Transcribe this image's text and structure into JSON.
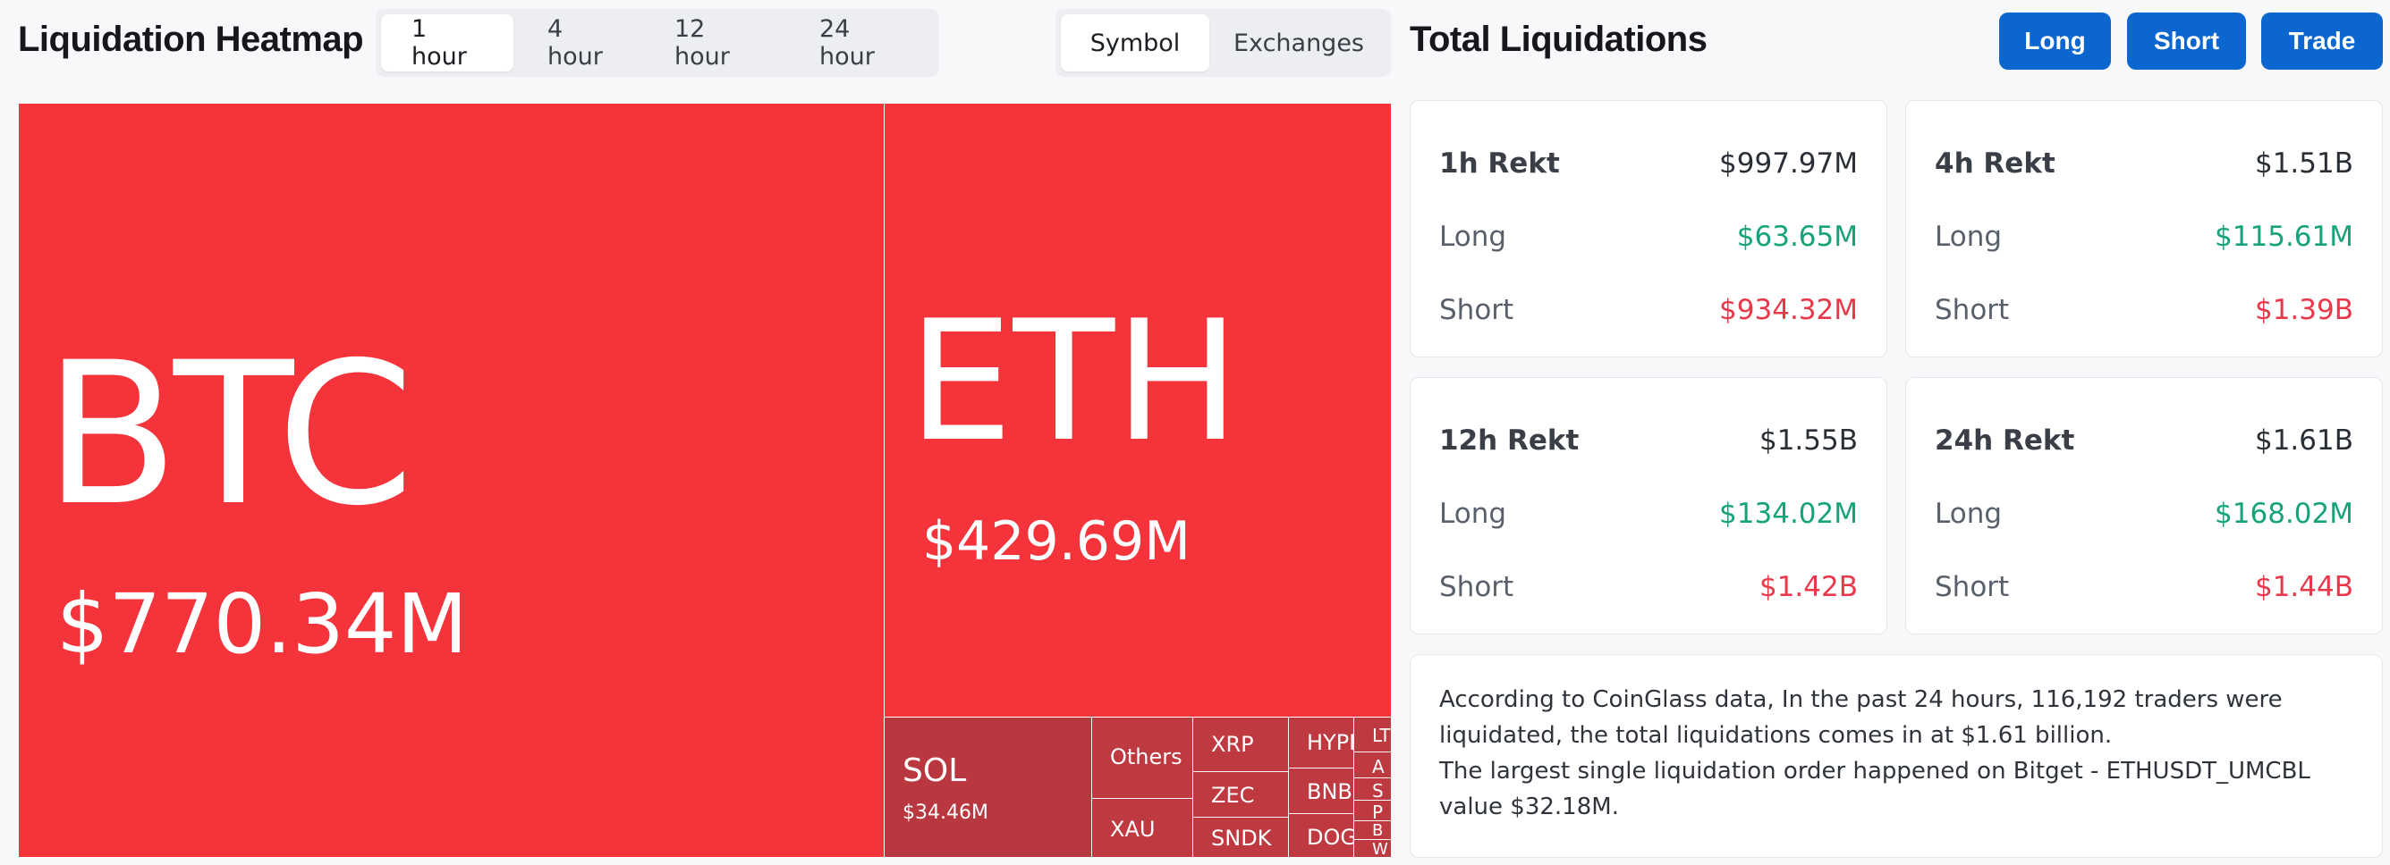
{
  "heatmap": {
    "title": "Liquidation Heatmap",
    "time_tabs": [
      "1 hour",
      "4 hour",
      "12 hour",
      "24 hour"
    ],
    "view_tabs": [
      "Symbol",
      "Exchanges"
    ],
    "tiles": {
      "btc": {
        "symbol": "BTC",
        "value": "$770.34M"
      },
      "eth": {
        "symbol": "ETH",
        "value": "$429.69M"
      },
      "sol": {
        "symbol": "SOL",
        "value": "$34.46M"
      },
      "others": {
        "symbol": "Others"
      },
      "xau": {
        "symbol": "XAU"
      },
      "xrp": {
        "symbol": "XRP"
      },
      "zec": {
        "symbol": "ZEC"
      },
      "sndk": {
        "symbol": "SNDK"
      },
      "hype": {
        "symbol": "HYPE"
      },
      "bnb": {
        "symbol": "BNB"
      },
      "doge": {
        "symbol": "DOGE"
      },
      "ltc": {
        "symbol": "LT"
      },
      "a": {
        "symbol": "A"
      },
      "s": {
        "symbol": "S"
      },
      "p": {
        "symbol": "P"
      },
      "b": {
        "symbol": "B"
      },
      "w": {
        "symbol": "W"
      }
    }
  },
  "total": {
    "title": "Total Liquidations",
    "buttons": {
      "long": "Long",
      "short": "Short",
      "trade": "Trade"
    },
    "cards": [
      {
        "title": "1h Rekt",
        "total": "$997.97M",
        "long_label": "Long",
        "long": "$63.65M",
        "short_label": "Short",
        "short": "$934.32M"
      },
      {
        "title": "4h Rekt",
        "total": "$1.51B",
        "long_label": "Long",
        "long": "$115.61M",
        "short_label": "Short",
        "short": "$1.39B"
      },
      {
        "title": "12h Rekt",
        "total": "$1.55B",
        "long_label": "Long",
        "long": "$134.02M",
        "short_label": "Short",
        "short": "$1.42B"
      },
      {
        "title": "24h Rekt",
        "total": "$1.61B",
        "long_label": "Long",
        "long": "$168.02M",
        "short_label": "Short",
        "short": "$1.44B"
      }
    ],
    "summary_line1": "According to CoinGlass data, In the past 24 hours, 116,192 traders were liquidated, the total liquidations comes in at $1.61 billion.",
    "summary_line2": "The largest single liquidation order happened on Bitget - ETHUSDT_UMCBL value $32.18M."
  },
  "colors": {
    "accent": "#0c66cf",
    "tile_red": "#f5333a",
    "tile_dark": "#be3940",
    "green": "#16a37a",
    "red": "#e9384a"
  }
}
